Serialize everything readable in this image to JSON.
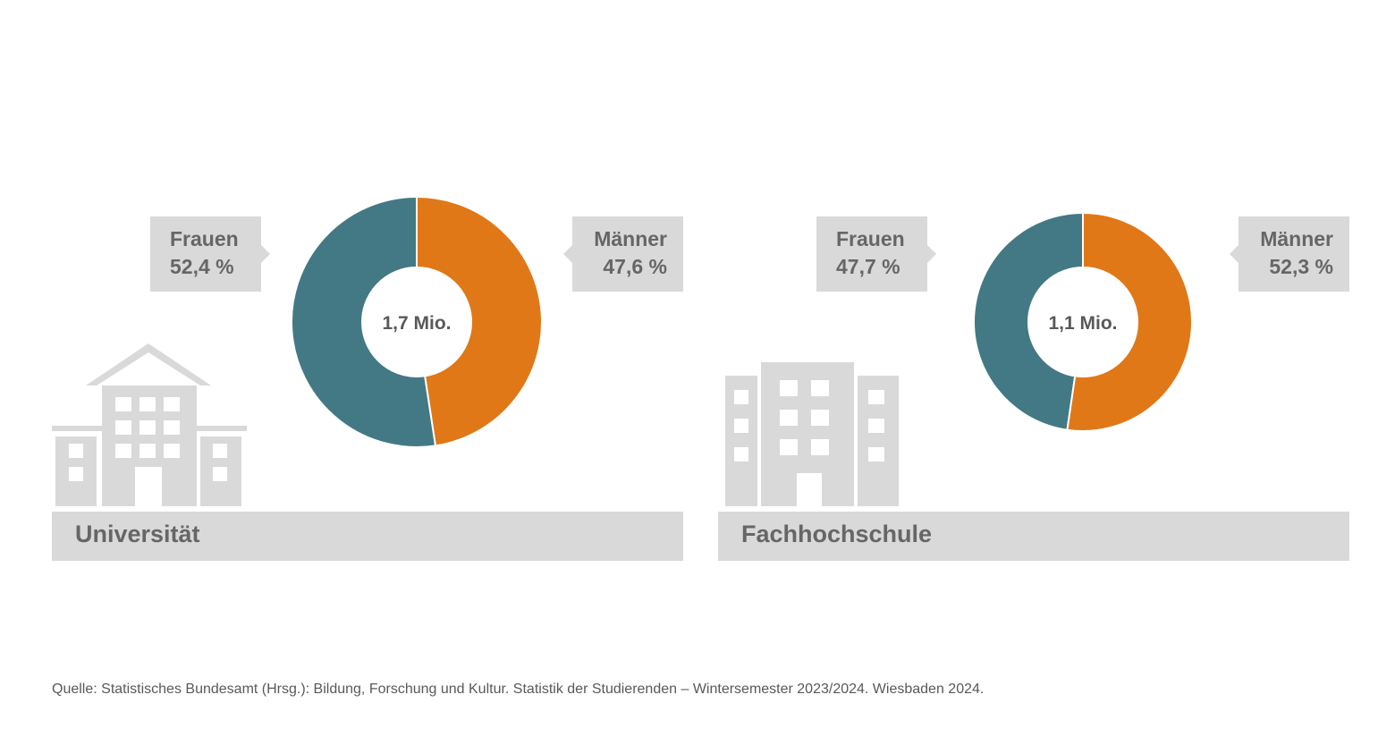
{
  "chart_data": [
    {
      "type": "pie",
      "center_label": "1,7 Mio.",
      "category": "Universität",
      "slices": [
        {
          "name": "Frauen",
          "label": "52,4 %",
          "value": 52.4,
          "color": "#427984"
        },
        {
          "name": "Männer",
          "label": "47,6 %",
          "value": 47.6,
          "color": "#e07818"
        }
      ]
    },
    {
      "type": "pie",
      "center_label": "1,1 Mio.",
      "category": "Fachhochschule",
      "slices": [
        {
          "name": "Frauen",
          "label": "47,7 %",
          "value": 47.7,
          "color": "#427984"
        },
        {
          "name": "Männer",
          "label": "52,3 %",
          "value": 52.3,
          "color": "#e07818"
        }
      ]
    }
  ],
  "icons": [
    "university-building-icon",
    "college-building-icon"
  ],
  "source": "Quelle: Statistisches Bundesamt (Hrsg.): Bildung, Forschung und Kultur. Statistik der Studierenden – Wintersemester 2023/2024. Wiesbaden 2024."
}
